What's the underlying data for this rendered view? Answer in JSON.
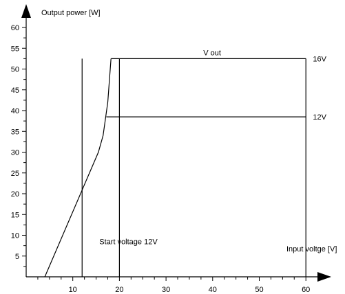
{
  "chart_data": {
    "type": "line",
    "title": "",
    "ylabel": "Output power [W]",
    "xlabel": "Input voltge [V]",
    "xlim": [
      0,
      60
    ],
    "ylim": [
      0,
      62
    ],
    "xticks": [
      10,
      20,
      30,
      40,
      50,
      60
    ],
    "yticks": [
      5,
      10,
      15,
      20,
      25,
      30,
      35,
      40,
      45,
      50,
      55,
      60
    ],
    "grid": false,
    "legend": "none",
    "series": [
      {
        "values": [
          {
            "x": 4,
            "y": 0
          },
          {
            "x": 15.5,
            "y": 30
          },
          {
            "x": 16.5,
            "y": 34
          },
          {
            "x": 17.5,
            "y": 42
          },
          {
            "x": 18.2,
            "y": 52.5
          }
        ]
      },
      {
        "name": "16V",
        "values": [
          {
            "x": 18.2,
            "y": 52.5
          },
          {
            "x": 60,
            "y": 52.5
          }
        ]
      },
      {
        "name": "12V",
        "values": [
          {
            "x": 17.2,
            "y": 38.5
          },
          {
            "x": 60,
            "y": 38.5
          }
        ]
      }
    ],
    "vlines": [
      {
        "x": 12,
        "y_top": 52.5
      },
      {
        "x": 20,
        "y_top": 52.5
      },
      {
        "x": 60,
        "y_top": 52.5
      }
    ],
    "annotations": [
      {
        "text": "V out",
        "x": 38,
        "y": 54
      },
      {
        "text": "Start voltage 12V",
        "x": 15.7,
        "y": 8.5
      },
      {
        "text": "16V",
        "x": 61.5,
        "y": 52.5
      },
      {
        "text": "12V",
        "x": 61.5,
        "y": 38.5
      }
    ]
  }
}
